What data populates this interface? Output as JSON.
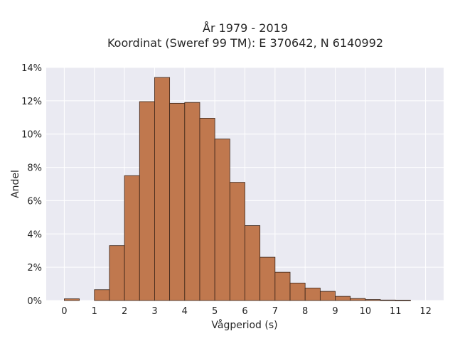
{
  "chart_data": {
    "type": "bar",
    "title": [
      "År 1979 - 2019",
      "Koordinat (Sweref 99 TM): E 370642, N 6140992"
    ],
    "xlabel": "Vågperiod (s)",
    "ylabel": "Andel",
    "xlim": [
      -0.6,
      12.6
    ],
    "ylim": [
      0,
      14
    ],
    "x_ticks": [
      0,
      1,
      2,
      3,
      4,
      5,
      6,
      7,
      8,
      9,
      10,
      11,
      12
    ],
    "y_ticks": [
      0,
      2,
      4,
      6,
      8,
      10,
      12,
      14
    ],
    "y_tick_labels": [
      "0%",
      "2%",
      "4%",
      "6%",
      "8%",
      "10%",
      "12%",
      "14%"
    ],
    "bin_width": 0.5,
    "bins": [
      {
        "x0": 0.0,
        "value": 0.1
      },
      {
        "x0": 0.5,
        "value": 0.0
      },
      {
        "x0": 1.0,
        "value": 0.65
      },
      {
        "x0": 1.5,
        "value": 3.3
      },
      {
        "x0": 2.0,
        "value": 7.5
      },
      {
        "x0": 2.5,
        "value": 11.95
      },
      {
        "x0": 3.0,
        "value": 13.4
      },
      {
        "x0": 3.5,
        "value": 11.85
      },
      {
        "x0": 4.0,
        "value": 11.9
      },
      {
        "x0": 4.5,
        "value": 10.95
      },
      {
        "x0": 5.0,
        "value": 9.7
      },
      {
        "x0": 5.5,
        "value": 7.1
      },
      {
        "x0": 6.0,
        "value": 4.5
      },
      {
        "x0": 6.5,
        "value": 2.6
      },
      {
        "x0": 7.0,
        "value": 1.7
      },
      {
        "x0": 7.5,
        "value": 1.05
      },
      {
        "x0": 8.0,
        "value": 0.75
      },
      {
        "x0": 8.5,
        "value": 0.55
      },
      {
        "x0": 9.0,
        "value": 0.25
      },
      {
        "x0": 9.5,
        "value": 0.12
      },
      {
        "x0": 10.0,
        "value": 0.06
      },
      {
        "x0": 10.5,
        "value": 0.03
      },
      {
        "x0": 11.0,
        "value": 0.02
      }
    ],
    "grid": true,
    "colors": {
      "plot_background": "#eaeaf2",
      "grid": "#ffffff",
      "bar_fill": "#c0784e",
      "bar_edge": "#3a2418"
    }
  }
}
